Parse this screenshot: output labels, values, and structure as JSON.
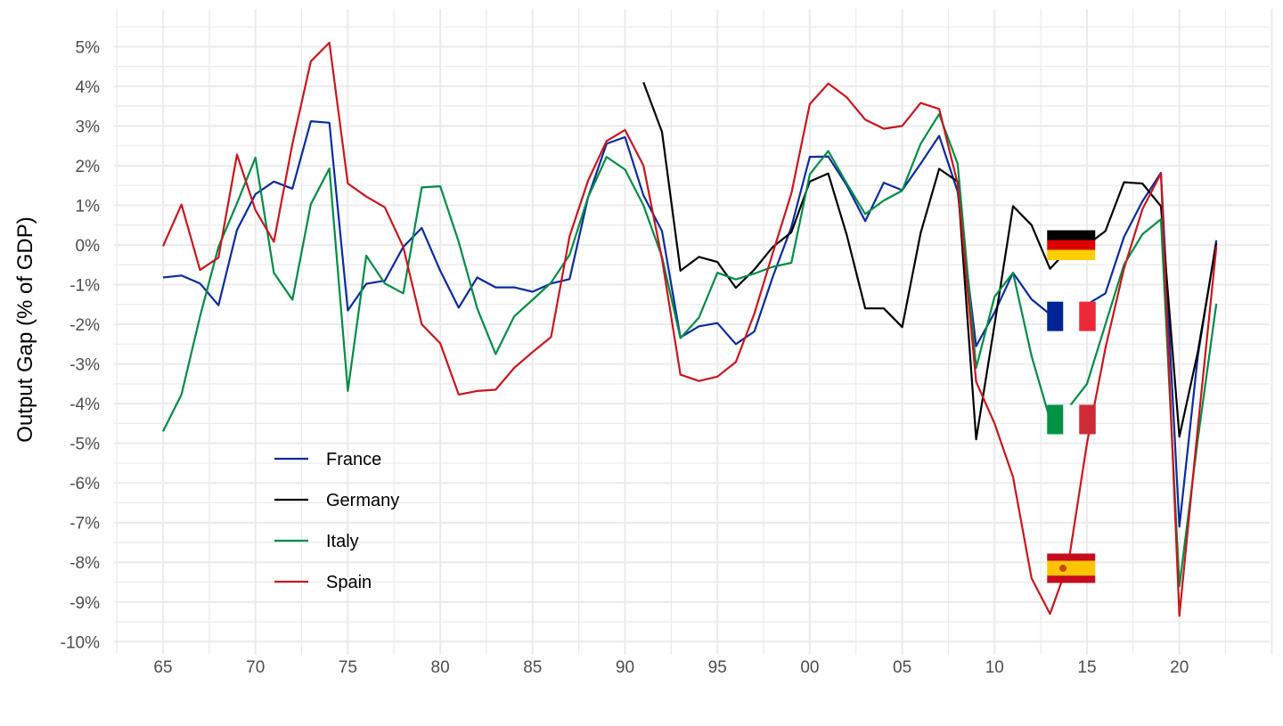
{
  "chart_data": {
    "type": "line",
    "title": "",
    "xlabel": "",
    "ylabel": "Output Gap (% of GDP)",
    "xlim": [
      1962.5,
      2025
    ],
    "ylim": [
      -10,
      5.5
    ],
    "grid": true,
    "legend_position": "bottom-left",
    "x_ticks": [
      {
        "value": 1965,
        "label": "65"
      },
      {
        "value": 1970,
        "label": "70"
      },
      {
        "value": 1975,
        "label": "75"
      },
      {
        "value": 1980,
        "label": "80"
      },
      {
        "value": 1985,
        "label": "85"
      },
      {
        "value": 1990,
        "label": "90"
      },
      {
        "value": 1995,
        "label": "95"
      },
      {
        "value": 2000,
        "label": "00"
      },
      {
        "value": 2005,
        "label": "05"
      },
      {
        "value": 2010,
        "label": "10"
      },
      {
        "value": 2015,
        "label": "15"
      },
      {
        "value": 2020,
        "label": "20"
      }
    ],
    "y_ticks": [
      {
        "value": 5,
        "label": "5%"
      },
      {
        "value": 4,
        "label": "4%"
      },
      {
        "value": 3,
        "label": "3%"
      },
      {
        "value": 2,
        "label": "2%"
      },
      {
        "value": 1,
        "label": "1%"
      },
      {
        "value": 0,
        "label": "0%"
      },
      {
        "value": -1,
        "label": "-1%"
      },
      {
        "value": -2,
        "label": "-2%"
      },
      {
        "value": -3,
        "label": "-3%"
      },
      {
        "value": -4,
        "label": "-4%"
      },
      {
        "value": -5,
        "label": "-5%"
      },
      {
        "value": -6,
        "label": "-6%"
      },
      {
        "value": -7,
        "label": "-7%"
      },
      {
        "value": -8,
        "label": "-8%"
      },
      {
        "value": -9,
        "label": "-9%"
      },
      {
        "value": -10,
        "label": "-10%"
      }
    ],
    "series": [
      {
        "name": "France",
        "color": "#0b2b9e",
        "start": 1965,
        "values": [
          -0.82,
          -0.77,
          -0.97,
          -1.52,
          0.38,
          1.28,
          1.6,
          1.42,
          3.12,
          3.08,
          -1.65,
          -0.98,
          -0.9,
          -0.05,
          0.43,
          -0.65,
          -1.58,
          -0.82,
          -1.07,
          -1.07,
          -1.18,
          -0.97,
          -0.86,
          1.2,
          2.55,
          2.72,
          1.25,
          0.35,
          -2.33,
          -2.05,
          -1.97,
          -2.5,
          -2.18,
          -0.8,
          0.45,
          2.22,
          2.23,
          1.5,
          0.6,
          1.57,
          1.38,
          2.05,
          2.75,
          1.35,
          -2.55,
          -1.7,
          -0.7,
          -1.37,
          -1.75,
          -1.7,
          -1.5,
          -1.22,
          0.2,
          1.1,
          1.82,
          -7.1,
          -2.8,
          0.12
        ]
      },
      {
        "name": "Germany",
        "color": "#000000",
        "start": 1991,
        "values": [
          4.1,
          2.85,
          -0.65,
          -0.3,
          -0.43,
          -1.08,
          -0.62,
          -0.05,
          0.32,
          1.6,
          1.8,
          0.25,
          -1.6,
          -1.6,
          -2.07,
          0.3,
          1.92,
          1.6,
          -4.9,
          -2.0,
          0.98,
          0.5,
          -0.6,
          -0.1,
          0.0,
          0.35,
          1.58,
          1.55,
          0.98,
          -4.83,
          -2.7,
          0.05
        ]
      },
      {
        "name": "Italy",
        "color": "#008c45",
        "start": 1965,
        "values": [
          -4.7,
          -3.77,
          -1.8,
          -0.05,
          1.05,
          2.2,
          -0.7,
          -1.38,
          1.03,
          1.93,
          -3.68,
          -0.27,
          -0.97,
          -1.22,
          1.45,
          1.48,
          0.08,
          -1.6,
          -2.75,
          -1.8,
          -1.38,
          -0.95,
          -0.25,
          1.2,
          2.22,
          1.9,
          1.0,
          -0.3,
          -2.35,
          -1.83,
          -0.7,
          -0.87,
          -0.72,
          -0.55,
          -0.45,
          1.78,
          2.37,
          1.55,
          0.78,
          1.12,
          1.37,
          2.55,
          3.3,
          2.05,
          -3.1,
          -1.3,
          -0.7,
          -2.8,
          -4.4,
          -4.1,
          -3.5,
          -2.0,
          -0.5,
          0.27,
          0.65,
          -8.6,
          -4.9,
          -1.48
        ]
      },
      {
        "name": "Spain",
        "color": "#c8161d",
        "start": 1965,
        "values": [
          -0.03,
          1.02,
          -0.63,
          -0.32,
          2.28,
          0.88,
          0.08,
          2.55,
          4.63,
          5.1,
          1.55,
          1.22,
          0.95,
          -0.05,
          -2.0,
          -2.48,
          -3.77,
          -3.68,
          -3.65,
          -3.1,
          -2.7,
          -2.32,
          0.22,
          1.62,
          2.62,
          2.9,
          2.0,
          -0.35,
          -3.27,
          -3.43,
          -3.32,
          -2.95,
          -1.73,
          -0.2,
          1.3,
          3.55,
          4.07,
          3.72,
          3.16,
          2.93,
          3.0,
          3.58,
          3.43,
          1.55,
          -3.45,
          -4.5,
          -5.85,
          -8.4,
          -9.3,
          -8.0,
          -5.0,
          -2.6,
          -0.6,
          0.9,
          1.8,
          -9.35,
          -4.6,
          -0.05
        ]
      }
    ],
    "flags": [
      {
        "country": "Germany",
        "year": 2014,
        "value": 0
      },
      {
        "country": "France",
        "year": 2014,
        "value": -1.8
      },
      {
        "country": "Italy",
        "year": 2014,
        "value": -4.4
      },
      {
        "country": "Spain",
        "year": 2014,
        "value": -8.15
      }
    ]
  }
}
